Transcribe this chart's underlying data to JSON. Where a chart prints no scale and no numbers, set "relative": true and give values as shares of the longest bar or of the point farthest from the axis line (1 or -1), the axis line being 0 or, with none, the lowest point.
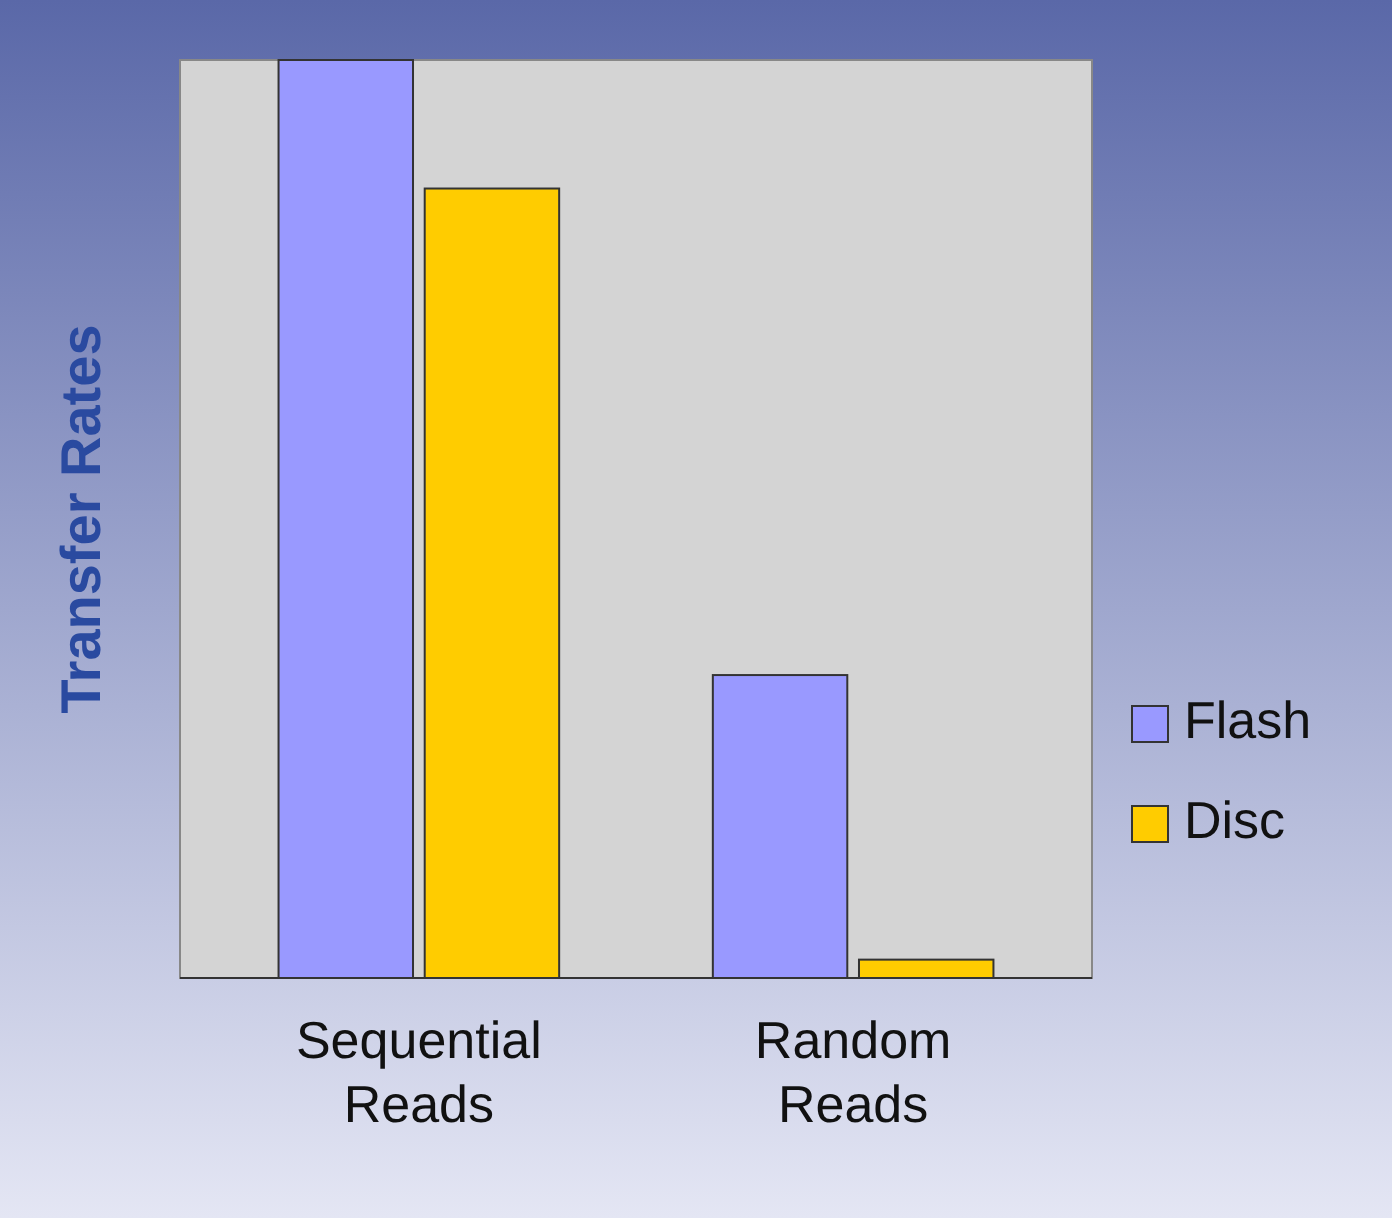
{
  "chart_data": {
    "type": "bar",
    "ylabel": "Transfer Rates",
    "relative": true,
    "categories": [
      "Sequential Reads",
      "Random Reads"
    ],
    "series": [
      {
        "name": "Flash",
        "color": "#9999ff",
        "values": [
          1,
          0.33
        ]
      },
      {
        "name": "Disc",
        "color": "#ffcc00",
        "values": [
          0.86,
          0.02
        ]
      }
    ],
    "legend": "right"
  }
}
